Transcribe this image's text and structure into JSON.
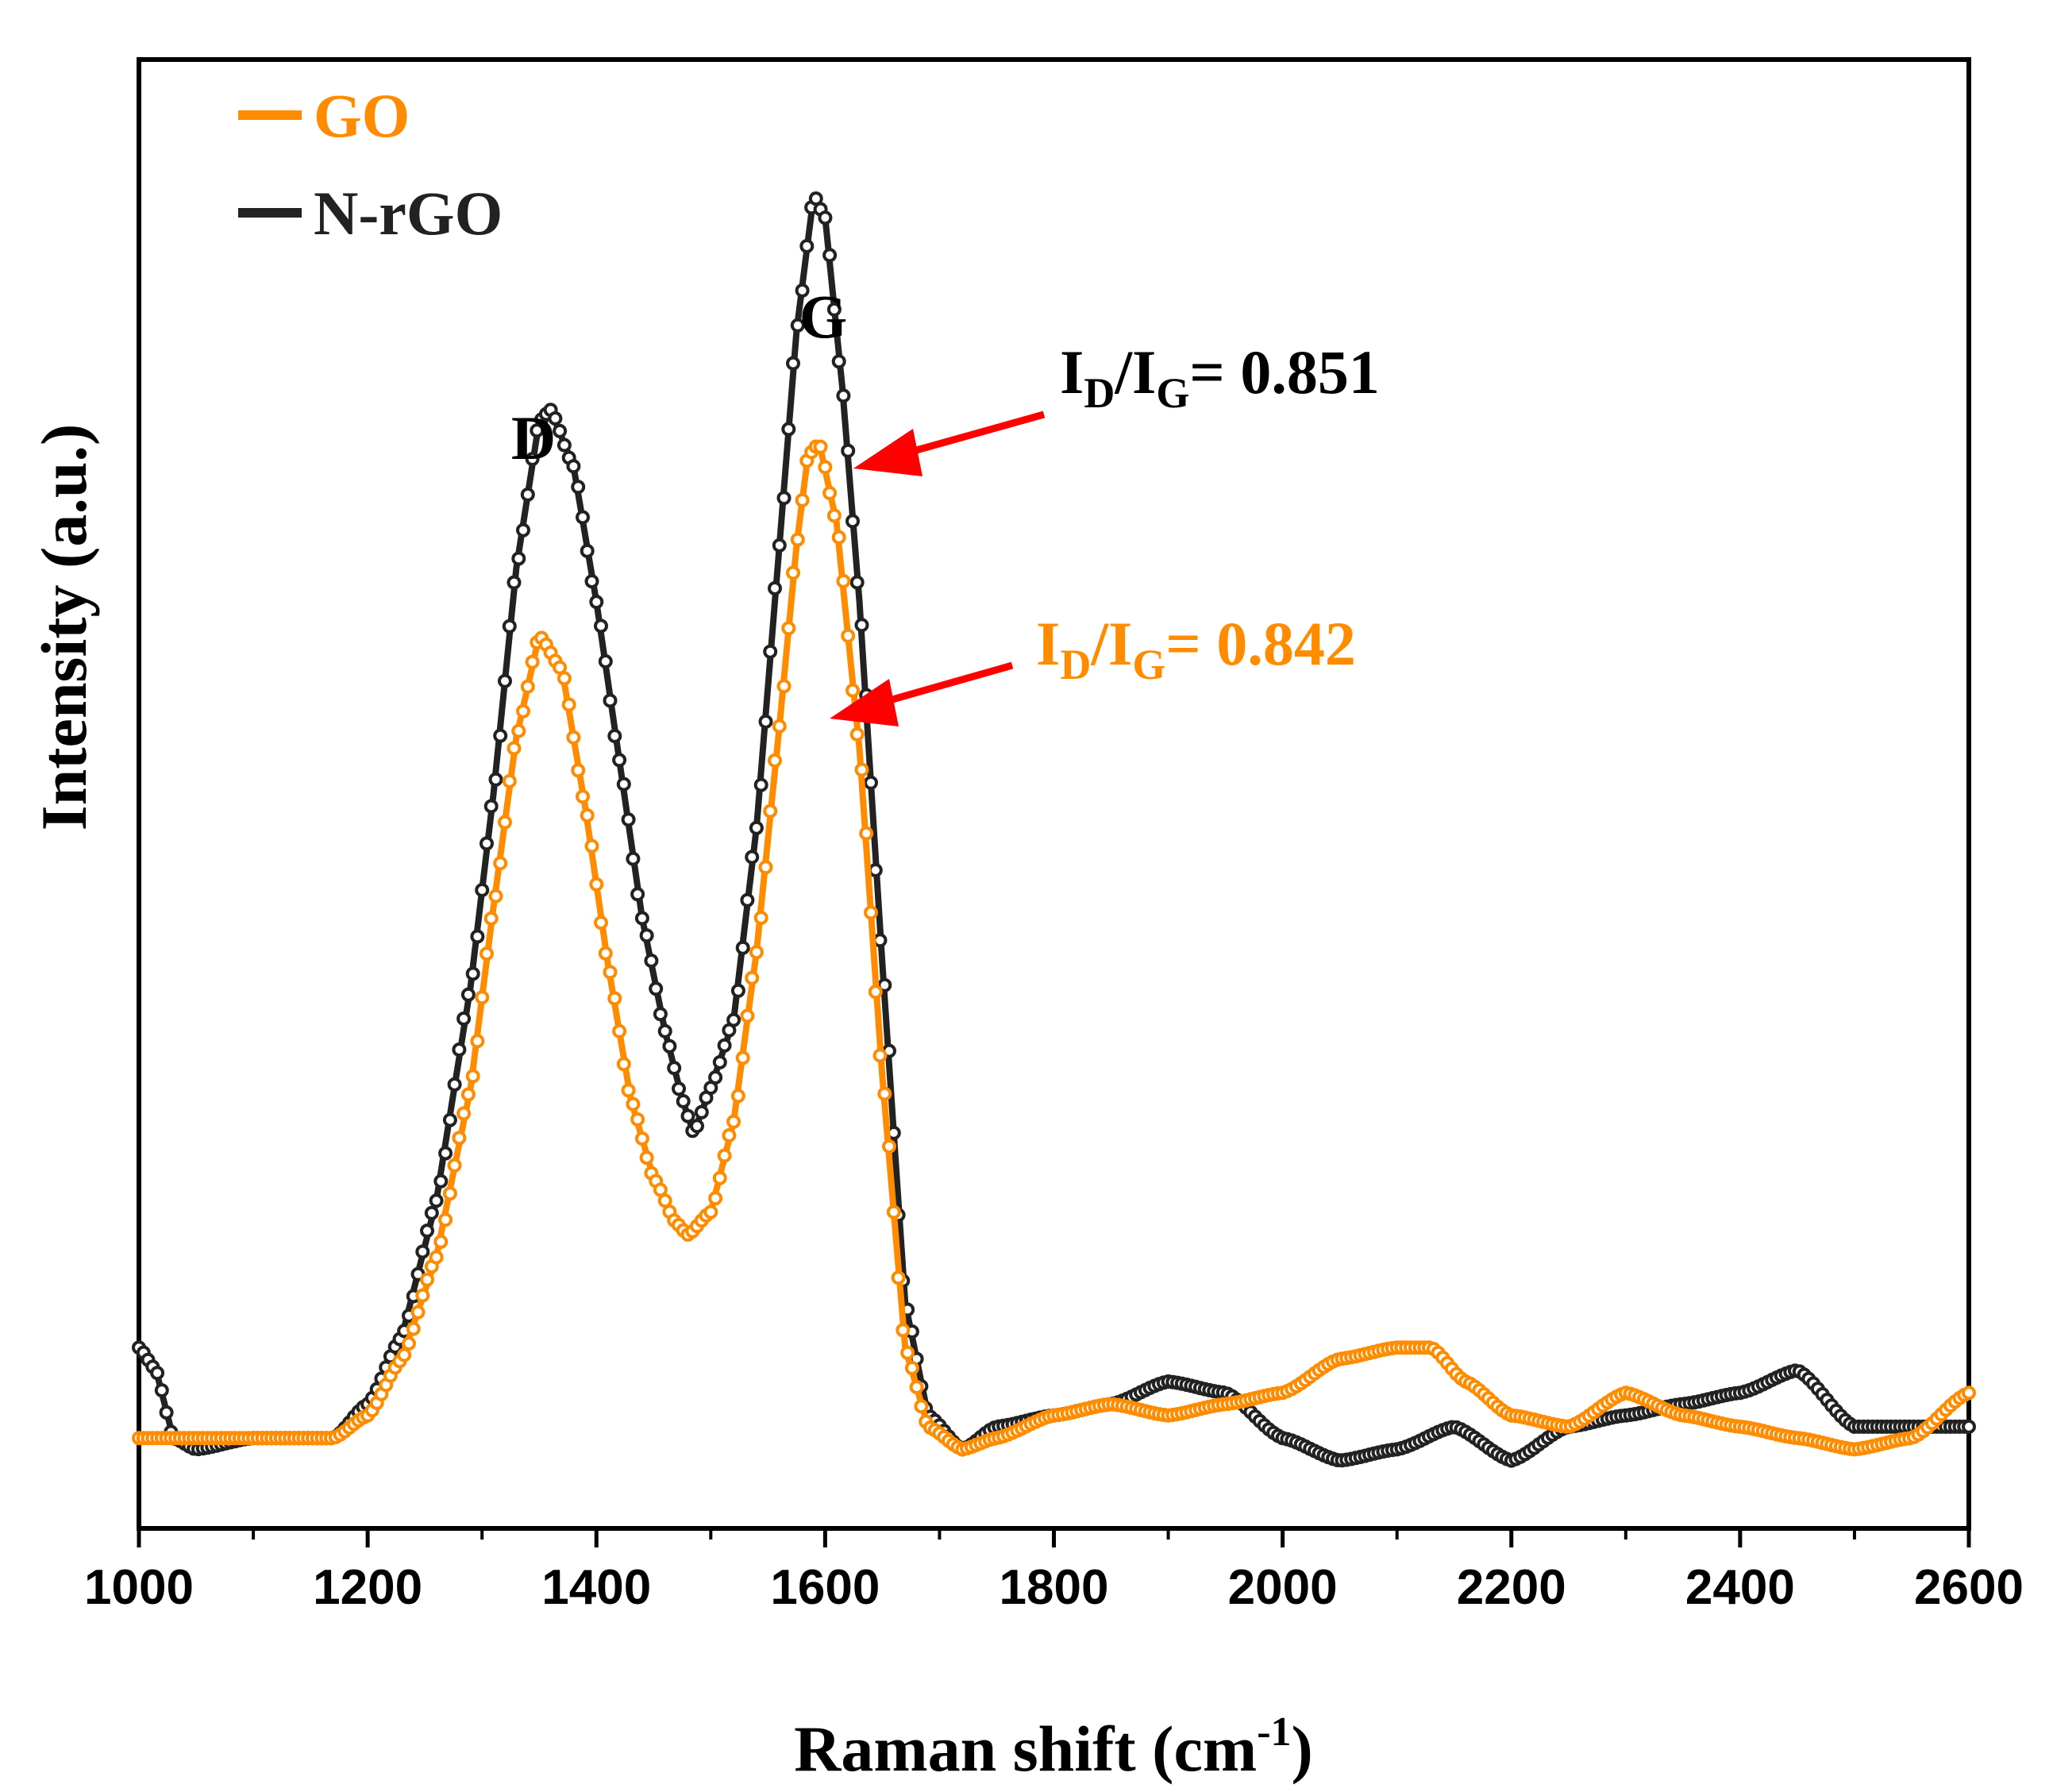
{
  "chart_data": {
    "type": "line",
    "title": "",
    "xlabel": "Raman shift (cm",
    "xlabel_sup": "-1",
    "xlabel_close": ")",
    "ylabel": "Intensity (a.u.)",
    "xlim": [
      1000,
      2600
    ],
    "ylim": [
      0,
      1.3
    ],
    "xticks": [
      "1000",
      "1200",
      "1400",
      "1600",
      "1800",
      "2000",
      "2200",
      "2400",
      "2600"
    ],
    "legend_position": "top-left",
    "series": [
      {
        "name": "GO",
        "color": "#ff8c00",
        "x": [
          1000,
          1050,
          1100,
          1150,
          1170,
          1200,
          1230,
          1260,
          1290,
          1310,
          1330,
          1350,
          1370,
          1390,
          1410,
          1430,
          1450,
          1470,
          1480,
          1500,
          1520,
          1540,
          1560,
          1575,
          1585,
          1595,
          1610,
          1630,
          1650,
          1670,
          1690,
          1720,
          1750,
          1800,
          1850,
          1900,
          1950,
          2000,
          2050,
          2100,
          2130,
          2160,
          2200,
          2250,
          2300,
          2350,
          2400,
          2450,
          2500,
          2550,
          2600
        ],
        "y": [
          0.08,
          0.08,
          0.08,
          0.08,
          0.08,
          0.1,
          0.15,
          0.24,
          0.39,
          0.55,
          0.7,
          0.79,
          0.76,
          0.64,
          0.5,
          0.38,
          0.31,
          0.27,
          0.26,
          0.28,
          0.36,
          0.51,
          0.71,
          0.87,
          0.95,
          0.96,
          0.89,
          0.69,
          0.4,
          0.16,
          0.09,
          0.07,
          0.08,
          0.1,
          0.11,
          0.1,
          0.11,
          0.12,
          0.15,
          0.16,
          0.16,
          0.13,
          0.1,
          0.09,
          0.12,
          0.1,
          0.09,
          0.08,
          0.07,
          0.08,
          0.12
        ]
      },
      {
        "name": "N-rGO",
        "color": "#222222",
        "x": [
          1000,
          1015,
          1030,
          1050,
          1100,
          1150,
          1170,
          1200,
          1230,
          1260,
          1290,
          1310,
          1330,
          1350,
          1360,
          1380,
          1400,
          1420,
          1440,
          1460,
          1475,
          1485,
          1500,
          1520,
          1540,
          1560,
          1575,
          1590,
          1600,
          1615,
          1630,
          1650,
          1670,
          1690,
          1720,
          1750,
          1800,
          1850,
          1900,
          1950,
          2000,
          2050,
          2100,
          2150,
          2200,
          2250,
          2300,
          2350,
          2400,
          2450,
          2500,
          2550,
          2600
        ],
        "y": [
          0.16,
          0.14,
          0.08,
          0.07,
          0.08,
          0.08,
          0.08,
          0.11,
          0.17,
          0.29,
          0.48,
          0.65,
          0.85,
          0.98,
          0.99,
          0.94,
          0.82,
          0.68,
          0.54,
          0.44,
          0.38,
          0.35,
          0.39,
          0.45,
          0.62,
          0.87,
          1.06,
          1.18,
          1.16,
          1.01,
          0.82,
          0.5,
          0.2,
          0.1,
          0.07,
          0.09,
          0.1,
          0.11,
          0.13,
          0.12,
          0.08,
          0.06,
          0.07,
          0.09,
          0.06,
          0.09,
          0.1,
          0.11,
          0.12,
          0.14,
          0.09,
          0.09,
          0.09
        ]
      }
    ],
    "annotations": {
      "peak_d": "D",
      "peak_g": "G",
      "n_rgo_ratio": {
        "prefix": "I",
        "sub1": "D",
        "mid": "/I",
        "sub2": "G",
        "suffix": "= 0.851",
        "color": "#000000"
      },
      "go_ratio": {
        "prefix": "I",
        "sub1": "D",
        "mid": "/I",
        "sub2": "G",
        "suffix": "= 0.842",
        "color": "#ff8c00"
      },
      "arrow_color": "#ff0000"
    }
  }
}
